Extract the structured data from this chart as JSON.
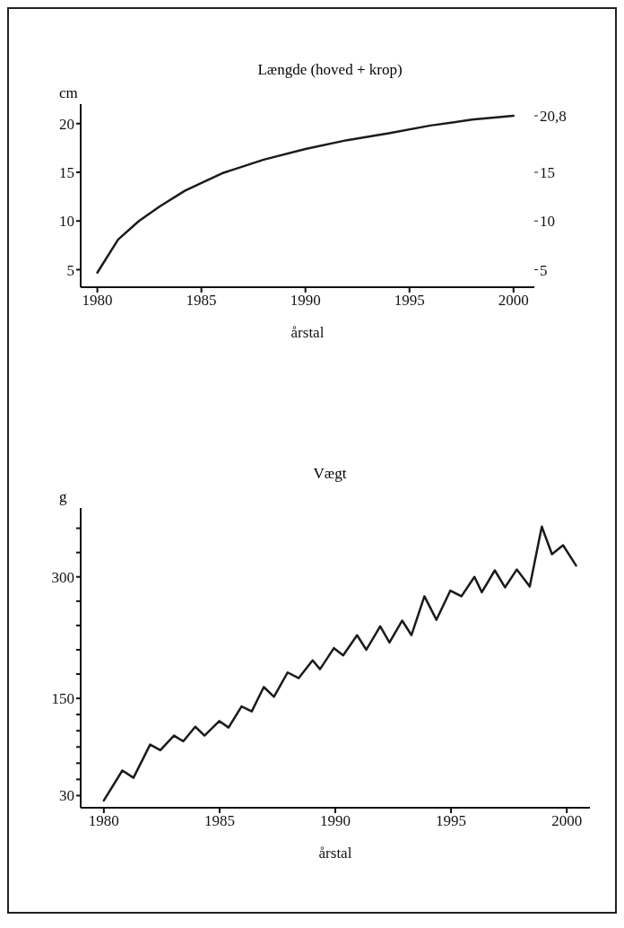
{
  "chart_data": [
    {
      "type": "line",
      "title": "Længde (hoved + krop)",
      "xlabel": "årstal",
      "ylabel": "cm",
      "color": "#1a1a1a",
      "marker": "none",
      "line_style": "solid",
      "x": [
        1980,
        1981,
        1982,
        1983,
        1984.2,
        1985,
        1986,
        1988,
        1990,
        1992,
        1994,
        1996,
        1998,
        2000
      ],
      "values": [
        4.7,
        8.1,
        10.0,
        11.5,
        13.1,
        13.9,
        14.9,
        16.3,
        17.4,
        18.3,
        19.0,
        19.8,
        20.4,
        20.8
      ],
      "xlim": [
        1979.2,
        2001
      ],
      "xticks": [
        1980,
        1985,
        1990,
        1995,
        2000
      ],
      "ylim": [
        3.2,
        22
      ],
      "yticks": [
        5,
        10,
        15,
        20
      ],
      "y2lim": [
        3.2,
        22
      ],
      "y2ticks": [
        5,
        10,
        15,
        {
          "value": 20.8,
          "label": "20,8"
        }
      ]
    },
    {
      "type": "line",
      "title": "Vægt",
      "xlabel": "årstal",
      "ylabel": "g",
      "color": "#1a1a1a",
      "marker": "none",
      "line_style": "solid",
      "x": [
        1980.0,
        1980.8,
        1981.28,
        1982.0,
        1982.44,
        1983.03,
        1983.43,
        1983.95,
        1984.35,
        1984.99,
        1985.39,
        1985.95,
        1986.39,
        1986.91,
        1987.35,
        1987.94,
        1988.42,
        1989.02,
        1989.34,
        1989.94,
        1990.34,
        1990.94,
        1991.34,
        1991.94,
        1992.34,
        1992.89,
        1993.29,
        1993.85,
        1994.37,
        1994.97,
        1995.45,
        1996.01,
        1996.33,
        1996.89,
        1997.33,
        1997.84,
        1998.4,
        1998.92,
        1999.36,
        1999.84,
        2000.4
      ],
      "values": [
        24,
        61,
        52,
        93,
        86,
        104,
        97,
        115,
        104,
        122,
        114,
        140,
        134,
        164,
        152,
        182,
        175,
        197,
        186,
        212,
        203,
        228,
        210,
        239,
        219,
        246,
        228,
        276,
        247,
        283,
        276,
        300,
        281,
        308,
        287,
        309,
        288,
        362,
        328,
        339,
        314
      ],
      "xlim": [
        1979,
        2001
      ],
      "xticks": [
        1980,
        1985,
        1990,
        1995,
        2000
      ],
      "ylim": [
        15,
        385
      ],
      "yticks": [
        30,
        {
          "value": 50,
          "label": null
        },
        {
          "value": 70,
          "label": null
        },
        {
          "value": 90,
          "label": null
        },
        {
          "value": 110,
          "label": null
        },
        {
          "value": 130,
          "label": null
        },
        150,
        {
          "value": 180,
          "label": null
        },
        {
          "value": 210,
          "label": null
        },
        {
          "value": 240,
          "label": null
        },
        {
          "value": 270,
          "label": null
        },
        300,
        {
          "value": 330,
          "label": null
        },
        {
          "value": 360,
          "label": null
        }
      ]
    }
  ]
}
